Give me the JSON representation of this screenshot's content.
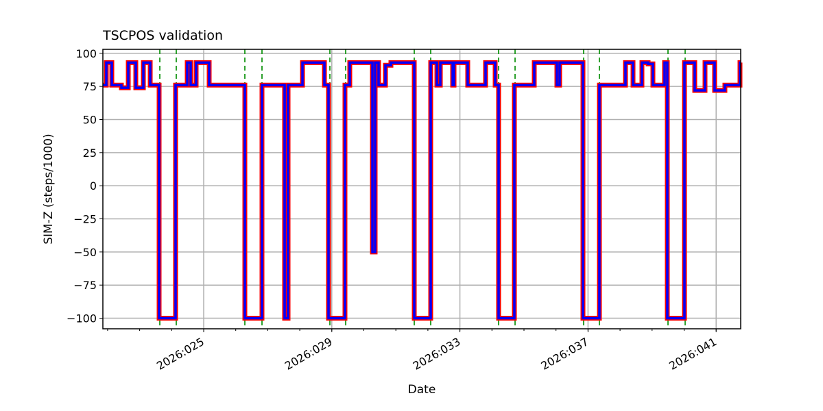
{
  "chart_data": {
    "type": "line",
    "title": "TSCPOS validation",
    "xlabel": "Date",
    "ylabel": "SIM-Z (steps/1000)",
    "xlim": [
      21.852,
      41.767
    ],
    "ylim": [
      -108,
      103
    ],
    "grid": true,
    "x_ticks": [
      25,
      29,
      33,
      37,
      41
    ],
    "x_tick_labels": [
      "2026:025",
      "2026:029",
      "2026:033",
      "2026:037",
      "2026:041"
    ],
    "y_ticks": [
      -100,
      -75,
      -50,
      -25,
      0,
      25,
      50,
      75,
      100
    ],
    "y_tick_labels": [
      "−100",
      "−75",
      "−50",
      "−25",
      "0",
      "25",
      "50",
      "75",
      "100"
    ],
    "series": [
      {
        "name": "SIM-Z",
        "style": "steps-post",
        "colors": [
          "#ff0000",
          "#0000ff"
        ],
        "x": [
          21.852,
          21.959,
          22.131,
          22.43,
          22.645,
          22.88,
          23.116,
          23.33,
          23.608,
          24.122,
          24.486,
          24.593,
          24.764,
          25.171,
          26.285,
          26.82,
          27.527,
          27.634,
          28.084,
          28.769,
          28.897,
          29.411,
          29.561,
          30.268,
          30.353,
          30.46,
          30.675,
          30.846,
          31.574,
          32.088,
          32.281,
          32.388,
          32.773,
          32.816,
          33.244,
          33.801,
          34.101,
          34.208,
          34.7,
          35.321,
          36.028,
          36.113,
          36.842,
          37.355,
          38.169,
          38.405,
          38.683,
          38.876,
          39.026,
          39.39,
          39.475,
          40.011,
          40.332,
          40.653,
          40.953,
          41.274,
          41.745,
          41.767
        ],
        "y": [
          76,
          93,
          76,
          74,
          93,
          74,
          93,
          76,
          -100,
          76,
          93,
          76,
          93,
          76,
          -100,
          76,
          -100,
          76,
          93,
          76,
          -100,
          76,
          93,
          -50,
          93,
          76,
          91,
          93,
          -100,
          93,
          76,
          93,
          76,
          93,
          76,
          93,
          76,
          -100,
          76,
          93,
          76,
          93,
          -100,
          76,
          93,
          76,
          93,
          92,
          76,
          93,
          -100,
          93,
          72,
          93,
          72,
          76,
          93,
          93
        ]
      }
    ],
    "vlines": {
      "color": "#2ca02c",
      "style": "dashed",
      "x": [
        23.63,
        24.143,
        26.285,
        26.82,
        28.94,
        29.433,
        31.574,
        32.088,
        34.208,
        34.722,
        36.863,
        37.355,
        39.497,
        40.032
      ]
    }
  }
}
